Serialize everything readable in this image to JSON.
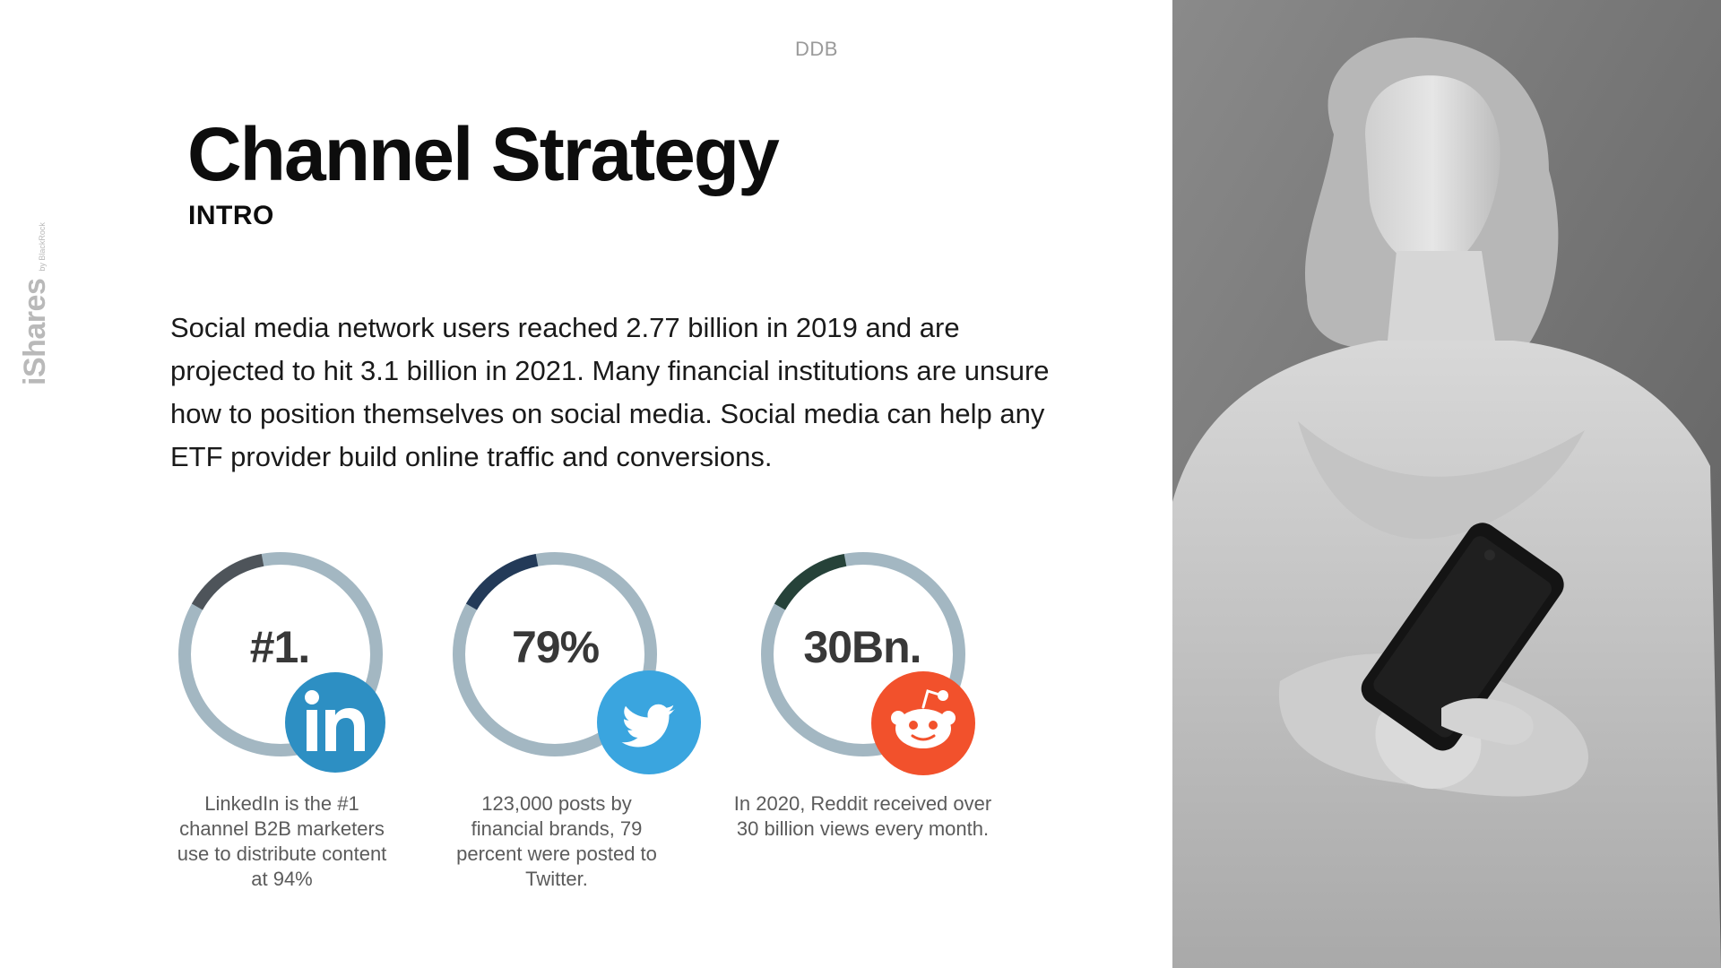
{
  "header": {
    "agency": "DDB"
  },
  "brand": {
    "name": "iShares",
    "sub": "by BlackRock"
  },
  "title": "Channel Strategy",
  "subtitle": "INTRO",
  "body": "Social media network users reached 2.77 billion in 2019 and are projected to hit 3.1 billion in 2021. Many financial institutions are unsure how to position themselves on social media. Social media can help any ETF provider build online traffic and conversions.",
  "stats": [
    {
      "value": "#1.",
      "caption": "LinkedIn is the #1 channel B2B marketers use to distribute content at 94%",
      "icon": "linkedin-icon",
      "ring_color": "#a3b7c2",
      "accent_color": "#4e545a",
      "badge_color": "#2d8fc3"
    },
    {
      "value": "79%",
      "caption": "123,000 posts by financial brands, 79 percent were posted to Twitter.",
      "icon": "twitter-icon",
      "ring_color": "#a3b7c2",
      "accent_color": "#233a58",
      "badge_color": "#3aa5df"
    },
    {
      "value": "30Bn.",
      "caption": "In 2020, Reddit received over 30 billion views every month.",
      "icon": "reddit-icon",
      "ring_color": "#a3b7c2",
      "accent_color": "#264239",
      "badge_color": "#f2512c"
    }
  ],
  "image": {
    "subject": "statue holding smartphone"
  }
}
